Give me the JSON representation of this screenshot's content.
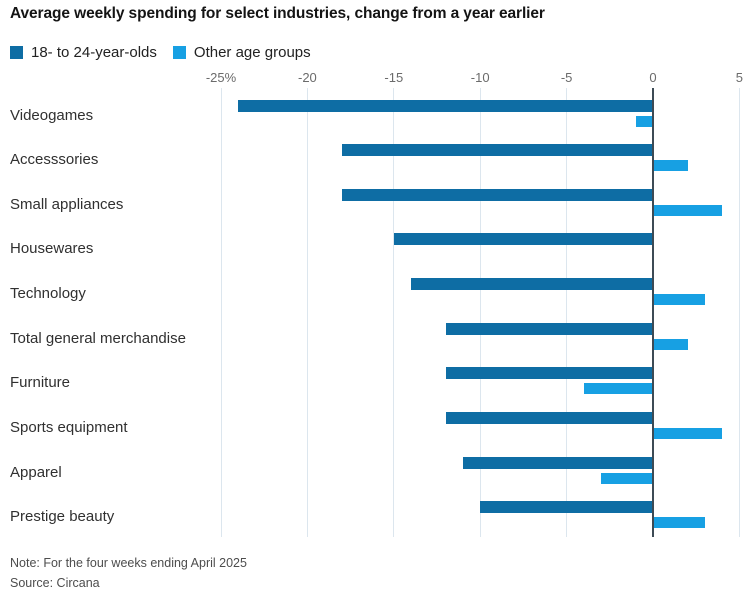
{
  "title": "Average weekly spending for select industries, change from a year earlier",
  "legend": [
    {
      "label": "18- to 24-year-olds",
      "color": "#0e6da4"
    },
    {
      "label": "Other age groups",
      "color": "#17a0e3"
    }
  ],
  "chart_data": {
    "type": "bar",
    "orientation": "horizontal",
    "title": "Average weekly spending for select industries, change from a year earlier",
    "unit": "%",
    "xlim": [
      -25,
      5
    ],
    "grid": true,
    "categories": [
      "Videogames",
      "Accesssories",
      "Small appliances",
      "Housewares",
      "Technology",
      "Total general merchandise",
      "Furniture",
      "Sports equipment",
      "Apparel",
      "Prestige beauty"
    ],
    "series": [
      {
        "name": "18- to 24-year-olds",
        "color": "#0e6da4",
        "values": [
          -24,
          -18,
          -18,
          -15,
          -14,
          -12,
          -12,
          -12,
          -11,
          -10
        ]
      },
      {
        "name": "Other age groups",
        "color": "#17a0e3",
        "values": [
          -1,
          2,
          4,
          0,
          3,
          2,
          -4,
          4,
          -3,
          3
        ]
      }
    ],
    "ticks": [
      {
        "value": -25,
        "label": "-25%"
      },
      {
        "value": -20,
        "label": "-20"
      },
      {
        "value": -15,
        "label": "-15"
      },
      {
        "value": -10,
        "label": "-10"
      },
      {
        "value": -5,
        "label": "-5"
      },
      {
        "value": 0,
        "label": "0"
      },
      {
        "value": 5,
        "label": "5"
      }
    ]
  },
  "footer": {
    "note": "Note: For the four weeks ending April 2025",
    "source": "Source: Circana"
  }
}
